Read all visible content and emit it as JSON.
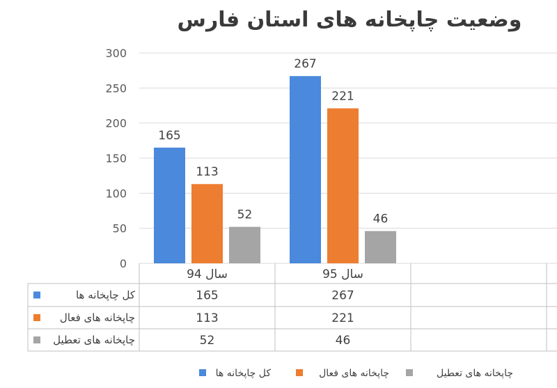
{
  "chart_data": {
    "type": "bar",
    "title": "وضعیت چاپخانه های استان فارس",
    "categories": [
      "سال 94",
      "سال 95"
    ],
    "series": [
      {
        "name": "کل چاپخانه ها",
        "values": [
          165,
          267
        ],
        "color": "#4a89dc"
      },
      {
        "name": "چاپخانه های فعال",
        "values": [
          113,
          221
        ],
        "color": "#ed7d31"
      },
      {
        "name": "چاپخانه های تعطیل",
        "values": [
          52,
          46
        ],
        "color": "#a5a5a5"
      }
    ],
    "ylim": [
      0,
      300
    ],
    "yticks": [
      0,
      50,
      100,
      150,
      200,
      250,
      300
    ],
    "grid": true,
    "legend": "bottom",
    "data_table": true
  }
}
